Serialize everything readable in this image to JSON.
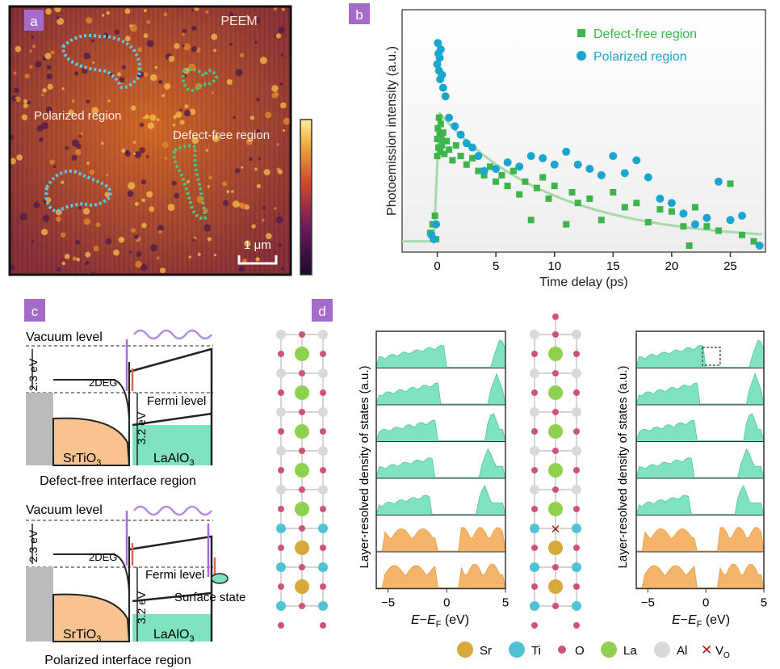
{
  "panel_labels": {
    "a": "a",
    "b": "b",
    "c": "c",
    "d": "d"
  },
  "peem": {
    "corner_label": "PEEM",
    "polarized_label": "Polarized region",
    "defect_free_label": "Defect-free region",
    "scale_bar": "1 μm"
  },
  "chart_data": {
    "type": "scatter",
    "xlabel": "Time delay (ps)",
    "ylabel": "Photoemission intensity (a.u.)",
    "xlim": [
      -3,
      28
    ],
    "ylim": [
      0,
      1
    ],
    "xticks": [
      "0",
      "5",
      "10",
      "15",
      "20",
      "25"
    ],
    "legend_position": "top-right",
    "series": [
      {
        "name": "Defect-free region",
        "marker": "square",
        "color": "#3db54a",
        "points": [
          [
            -0.6,
            0.06
          ],
          [
            -0.4,
            0.1
          ],
          [
            -0.2,
            0.14
          ],
          [
            -0.1,
            0.03
          ],
          [
            0,
            0.42
          ],
          [
            0,
            0.5
          ],
          [
            0.05,
            0.55
          ],
          [
            0.1,
            0.46
          ],
          [
            0.15,
            0.6
          ],
          [
            0.2,
            0.52
          ],
          [
            0.25,
            0.44
          ],
          [
            0.3,
            0.57
          ],
          [
            0.35,
            0.5
          ],
          [
            0.4,
            0.47
          ],
          [
            0.5,
            0.53
          ],
          [
            0.6,
            0.43
          ],
          [
            0.8,
            0.49
          ],
          [
            1.0,
            0.45
          ],
          [
            1.3,
            0.4
          ],
          [
            1.6,
            0.47
          ],
          [
            2.0,
            0.42
          ],
          [
            2.5,
            0.38
          ],
          [
            3.0,
            0.41
          ],
          [
            3.5,
            0.35
          ],
          [
            4.0,
            0.33
          ],
          [
            4.5,
            0.37
          ],
          [
            5.0,
            0.3
          ],
          [
            5.5,
            0.33
          ],
          [
            6.0,
            0.28
          ],
          [
            6.5,
            0.35
          ],
          [
            7.0,
            0.24
          ],
          [
            7.5,
            0.3
          ],
          [
            8.0,
            0.12
          ],
          [
            8.5,
            0.27
          ],
          [
            9.0,
            0.32
          ],
          [
            9.5,
            0.22
          ],
          [
            10.0,
            0.28
          ],
          [
            11.0,
            0.1
          ],
          [
            11.5,
            0.25
          ],
          [
            12.0,
            0.2
          ],
          [
            13.0,
            0.22
          ],
          [
            14.0,
            0.12
          ],
          [
            15.0,
            0.25
          ],
          [
            16.0,
            0.18
          ],
          [
            17.0,
            0.2
          ],
          [
            18.0,
            0.11
          ],
          [
            19.0,
            0.17
          ],
          [
            20.0,
            0.16
          ],
          [
            21.0,
            0.09
          ],
          [
            21.5,
            0.0
          ],
          [
            22.0,
            0.18
          ],
          [
            23.0,
            0.09
          ],
          [
            24.0,
            0.07
          ],
          [
            25.0,
            0.29
          ],
          [
            26.0,
            0.05
          ],
          [
            27.0,
            0.02
          ]
        ]
      },
      {
        "name": "Polarized region",
        "marker": "circle",
        "color": "#1aa6cf",
        "points": [
          [
            -0.5,
            0.05
          ],
          [
            -0.3,
            0.03
          ],
          [
            -0.1,
            0.1
          ],
          [
            0,
            0.85
          ],
          [
            0.05,
            0.95
          ],
          [
            0.1,
            0.9
          ],
          [
            0.15,
            0.82
          ],
          [
            0.2,
            0.88
          ],
          [
            0.25,
            0.78
          ],
          [
            0.3,
            0.92
          ],
          [
            0.4,
            0.8
          ],
          [
            0.5,
            0.74
          ],
          [
            0.7,
            0.7
          ],
          [
            1.0,
            0.6
          ],
          [
            1.5,
            0.56
          ],
          [
            2.0,
            0.52
          ],
          [
            2.5,
            0.48
          ],
          [
            3.0,
            0.46
          ],
          [
            3.5,
            0.42
          ],
          [
            4.0,
            0.35
          ],
          [
            5.0,
            0.36
          ],
          [
            6.0,
            0.39
          ],
          [
            7.0,
            0.37
          ],
          [
            8.0,
            0.42
          ],
          [
            9.0,
            0.41
          ],
          [
            10.0,
            0.38
          ],
          [
            11.0,
            0.44
          ],
          [
            12.0,
            0.38
          ],
          [
            13.0,
            0.36
          ],
          [
            14.0,
            0.33
          ],
          [
            15.0,
            0.42
          ],
          [
            16.0,
            0.34
          ],
          [
            17.0,
            0.4
          ],
          [
            18.0,
            0.32
          ],
          [
            19.0,
            0.22
          ],
          [
            20.0,
            0.2
          ],
          [
            21.0,
            0.15
          ],
          [
            22.0,
            0.1
          ],
          [
            23.0,
            0.13
          ],
          [
            24.0,
            0.3
          ],
          [
            25.0,
            0.12
          ],
          [
            26.0,
            0.14
          ],
          [
            27.5,
            0.0
          ]
        ]
      }
    ],
    "fit_curve": {
      "color": "#a8d9a8",
      "peak": [
        0.2,
        0.62
      ],
      "tau": 9.5,
      "offset": 0.02
    }
  },
  "band_diagrams": {
    "top": {
      "vacuum_level": "Vacuum level",
      "gap_2_3": "2.3 eV",
      "gap_3_2": "3.2 eV",
      "deg": "2DEG",
      "fermi_level": "Fermi level",
      "sto": "SrTiO",
      "sto_sub": "3",
      "lao": "LaAlO",
      "lao_sub": "3",
      "caption": "Defect-free interface region"
    },
    "bottom": {
      "vacuum_level": "Vacuum level",
      "gap_2_3": "2.3 eV",
      "gap_3_2": "3.2 eV",
      "deg": "2DEG",
      "fermi_level": "Fermi level",
      "surface_state": "Surface state",
      "sto": "SrTiO",
      "sto_sub": "3",
      "lao": "LaAlO",
      "lao_sub": "3",
      "caption": "Polarized interface region"
    }
  },
  "dos": {
    "ylabel": "Layer-resolved density of states (a.u.)",
    "xlabel_main": "E",
    "xlabel_minus": "−",
    "xlabel_sub": "F",
    "xlabel_unit": " (eV)",
    "xticks": [
      "−5",
      "0",
      "5"
    ]
  },
  "legend": {
    "sr": "Sr",
    "ti": "Ti",
    "o": "O",
    "la": "La",
    "al": "Al",
    "vo_main": "V",
    "vo_sub": "O"
  },
  "colors": {
    "green_fill": "#7fe3c0",
    "orange_fill": "#f4b56a",
    "la_atom": "#8fd14f",
    "sr_atom": "#d7a83a",
    "ti_atom": "#4fc3d3",
    "o_atom": "#cc5577",
    "al_atom": "#d9d9d9",
    "panel_tag": "#a46bc9"
  }
}
